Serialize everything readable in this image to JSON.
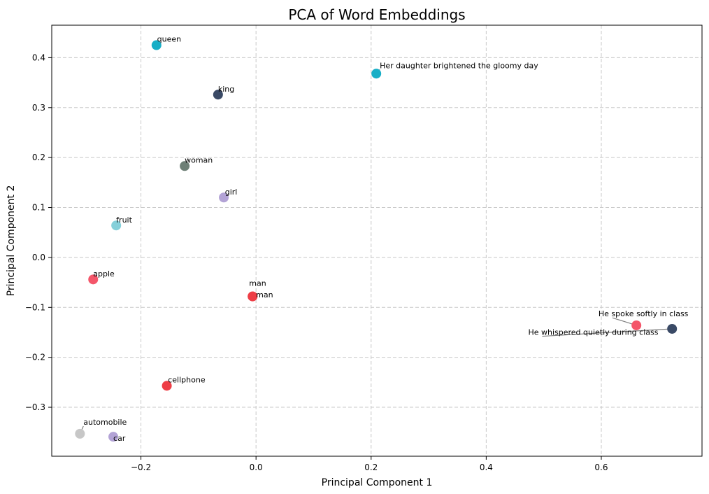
{
  "chart_data": {
    "type": "scatter",
    "title": "PCA of Word Embeddings",
    "xlabel": "Principal Component 1",
    "ylabel": "Principal Component 2",
    "xlim": [
      -0.355,
      0.775
    ],
    "ylim": [
      -0.398,
      0.465
    ],
    "xticks": [
      -0.2,
      0.0,
      0.2,
      0.4,
      0.6
    ],
    "yticks": [
      -0.3,
      -0.2,
      -0.1,
      0.0,
      0.1,
      0.2,
      0.3,
      0.4
    ],
    "xtick_labels": [
      "−0.2",
      "0.0",
      "0.2",
      "0.4",
      "0.6"
    ],
    "ytick_labels": [
      "−0.3",
      "−0.2",
      "−0.1",
      "0.0",
      "0.1",
      "0.2",
      "0.3",
      "0.4"
    ],
    "grid": true,
    "points": [
      {
        "label": "queen",
        "x": -0.173,
        "y": 0.425,
        "color": "#17aec6",
        "lx": -0.172,
        "ly": 0.432,
        "anchor": "start",
        "leader": false
      },
      {
        "label": "Her daughter brightened the gloomy day",
        "x": 0.209,
        "y": 0.368,
        "color": "#17aec6",
        "lx": 0.215,
        "ly": 0.379,
        "anchor": "start",
        "leader": true
      },
      {
        "label": "king",
        "x": -0.066,
        "y": 0.326,
        "color": "#3a4a66",
        "lx": -0.066,
        "ly": 0.332,
        "anchor": "start",
        "leader": false
      },
      {
        "label": "woman",
        "x": -0.124,
        "y": 0.183,
        "color": "#6e7f76",
        "lx": -0.124,
        "ly": 0.19,
        "anchor": "start",
        "leader": false
      },
      {
        "label": "girl",
        "x": -0.056,
        "y": 0.12,
        "color": "#b3a3d6",
        "lx": -0.054,
        "ly": 0.126,
        "anchor": "start",
        "leader": false
      },
      {
        "label": "fruit",
        "x": -0.243,
        "y": 0.064,
        "color": "#85d0da",
        "lx": -0.243,
        "ly": 0.07,
        "anchor": "start",
        "leader": false
      },
      {
        "label": "apple",
        "x": -0.283,
        "y": -0.044,
        "color": "#f4566a",
        "lx": -0.283,
        "ly": -0.038,
        "anchor": "start",
        "leader": false
      },
      {
        "label": "man",
        "x": -0.006,
        "y": -0.078,
        "color": "#ee3e46",
        "lx": -0.012,
        "ly": -0.057,
        "anchor": "start",
        "leader": false
      },
      {
        "label": "man",
        "x": -0.006,
        "y": -0.078,
        "color": "#ee3e46",
        "lx": 0.0,
        "ly": -0.08,
        "anchor": "start",
        "leader": false
      },
      {
        "label": "He spoke softly in class",
        "x": 0.661,
        "y": -0.136,
        "color": "#f4566a",
        "lx": 0.595,
        "ly": -0.118,
        "anchor": "start",
        "leader": true
      },
      {
        "label": "He whispered quietly during class",
        "x": 0.723,
        "y": -0.143,
        "color": "#3a4a66",
        "lx": 0.473,
        "ly": -0.155,
        "anchor": "start",
        "leader": true
      },
      {
        "label": "cellphone",
        "x": -0.155,
        "y": -0.257,
        "color": "#ee3e46",
        "lx": -0.153,
        "ly": -0.25,
        "anchor": "start",
        "leader": false
      },
      {
        "label": "automobile",
        "x": -0.306,
        "y": -0.353,
        "color": "#c7c7c7",
        "lx": -0.3,
        "ly": -0.335,
        "anchor": "start",
        "leader": true
      },
      {
        "label": "car",
        "x": -0.248,
        "y": -0.359,
        "color": "#b3a3d6",
        "lx": -0.248,
        "ly": -0.367,
        "anchor": "start",
        "leader": false
      }
    ]
  }
}
